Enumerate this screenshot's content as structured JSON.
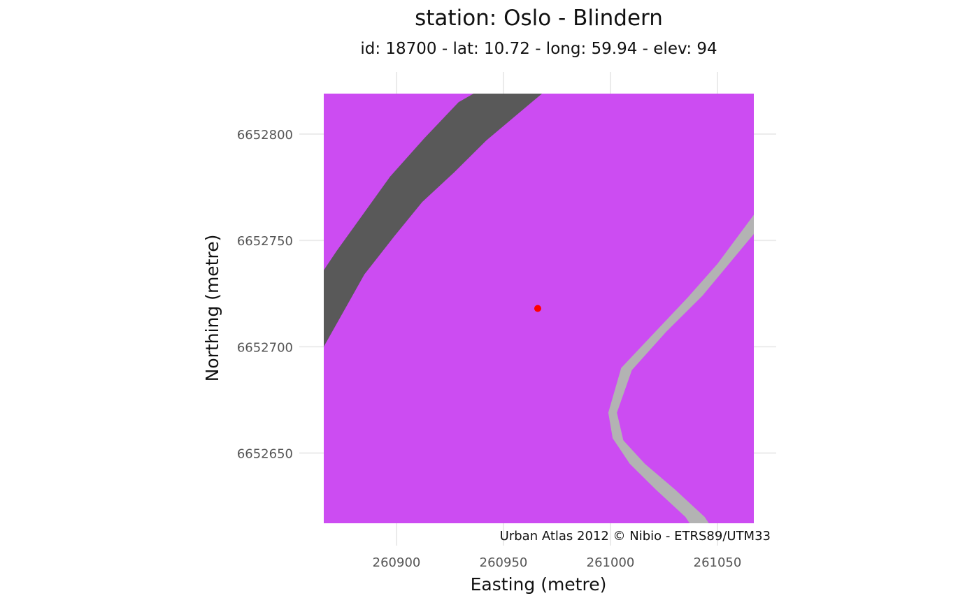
{
  "title": "station: Oslo - Blindern",
  "subtitle": "id: 18700 - lat: 10.72 - long: 59.94 - elev: 94",
  "caption": "Urban Atlas 2012 © Nibio - ETRS89/UTM33",
  "x_axis": {
    "label": "Easting (metre)",
    "range": [
      260866,
      261067
    ],
    "ticks": [
      260900,
      260950,
      261000,
      261050
    ],
    "tick_labels": [
      "260900",
      "260950",
      "261000",
      "261050"
    ]
  },
  "y_axis": {
    "label": "Northing (metre)",
    "range": [
      6652617,
      6652819
    ],
    "ticks": [
      6652650,
      6652700,
      6652750,
      6652800
    ],
    "tick_labels": [
      "6652650",
      "6652700",
      "6652750",
      "6652800"
    ]
  },
  "grid": true,
  "colors": {
    "land_cover_fill": "#cc4cf2",
    "major_road": "#595959",
    "minor_road": "#b3b3b3",
    "station_point": "#ff0000",
    "grid": "#ebebeb"
  },
  "station": {
    "easting": 260966,
    "northing": 6652718
  },
  "features": [
    {
      "name": "major-road",
      "type": "polygon",
      "points": [
        [
          260866,
          6652736
        ],
        [
          260872,
          6652745
        ],
        [
          260897,
          6652780
        ],
        [
          260913,
          6652798
        ],
        [
          260929,
          6652815
        ],
        [
          260936,
          6652819
        ],
        [
          260968,
          6652819
        ],
        [
          260942,
          6652797
        ],
        [
          260927,
          6652782
        ],
        [
          260912,
          6652768
        ],
        [
          260899,
          6652752
        ],
        [
          260885,
          6652734
        ],
        [
          260866,
          6652700
        ]
      ]
    },
    {
      "name": "minor-road",
      "type": "polygon",
      "points": [
        [
          261067,
          6652762
        ],
        [
          261067,
          6652753
        ],
        [
          261043,
          6652724
        ],
        [
          261026,
          6652707
        ],
        [
          261010,
          6652689
        ],
        [
          261003,
          6652669
        ],
        [
          261006,
          6652656
        ],
        [
          261016,
          6652645
        ],
        [
          261030,
          6652633
        ],
        [
          261044,
          6652620
        ],
        [
          261046,
          6652617
        ],
        [
          261037,
          6652617
        ],
        [
          261035,
          6652620
        ],
        [
          261021,
          6652633
        ],
        [
          261009,
          6652645
        ],
        [
          261001,
          6652657
        ],
        [
          260999,
          6652669
        ],
        [
          261005,
          6652690
        ],
        [
          261020,
          6652706
        ],
        [
          261036,
          6652723
        ],
        [
          261050,
          6652739
        ]
      ]
    }
  ]
}
